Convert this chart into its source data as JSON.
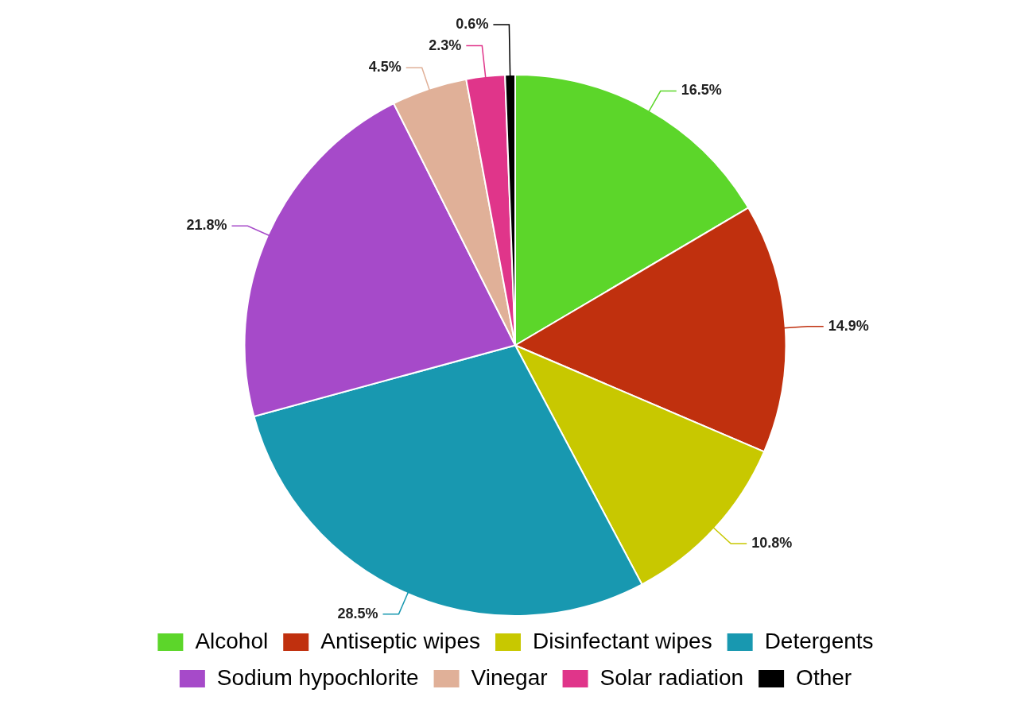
{
  "chart_data": {
    "type": "pie",
    "categories": [
      "Alcohol",
      "Antiseptic wipes",
      "Disinfectant wipes",
      "Detergents",
      "Sodium hypochlorite",
      "Vinegar",
      "Solar radiation",
      "Other"
    ],
    "values": [
      16.5,
      14.9,
      10.8,
      28.5,
      21.8,
      4.5,
      2.3,
      0.6
    ],
    "colors": [
      "#5cd62a",
      "#c0300e",
      "#c8c800",
      "#1898b0",
      "#a64ac9",
      "#e0b098",
      "#e0358a",
      "#000000"
    ],
    "value_labels": [
      "16.5%",
      "14.9%",
      "10.8%",
      "28.5%",
      "21.8%",
      "4.5%",
      "2.3%",
      "0.6%"
    ],
    "legend": "bottom"
  }
}
